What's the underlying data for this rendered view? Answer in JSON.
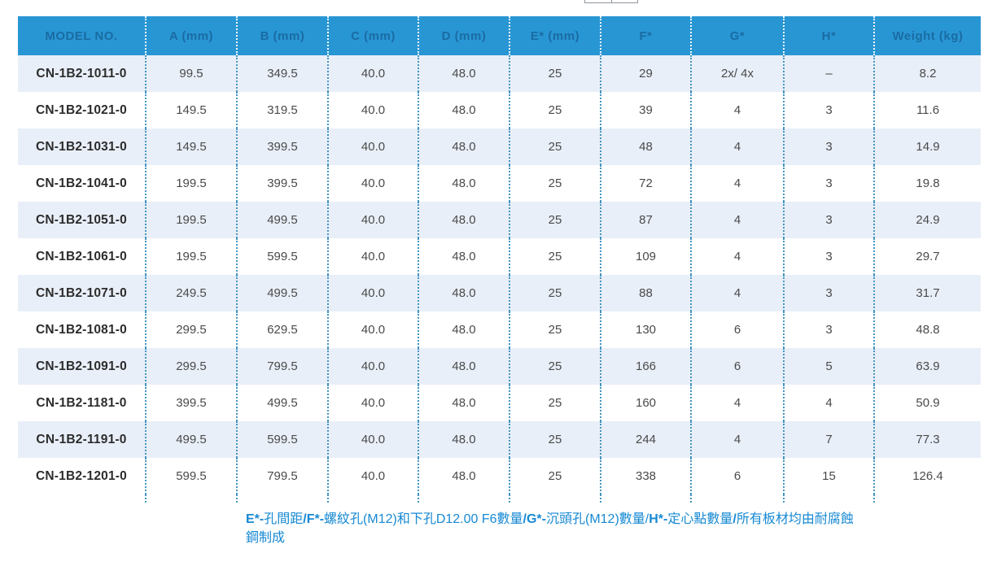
{
  "theme": {
    "header_bg": "#2996d4",
    "header_text": "#1a6ca3",
    "row_alt_bg": "#e9eff8",
    "separator_dot_color": "#4595c0",
    "footnote_text_color": "#1789d3"
  },
  "table": {
    "columns": [
      "MODEL NO.",
      "A (mm)",
      "B (mm)",
      "C (mm)",
      "D (mm)",
      "E* (mm)",
      "F*",
      "G*",
      "H*",
      "Weight (kg)"
    ],
    "rows": [
      [
        "CN-1B2-1011-0",
        "99.5",
        "349.5",
        "40.0",
        "48.0",
        "25",
        "29",
        "2x/ 4x",
        "–",
        "8.2"
      ],
      [
        "CN-1B2-1021-0",
        "149.5",
        "319.5",
        "40.0",
        "48.0",
        "25",
        "39",
        "4",
        "3",
        "11.6"
      ],
      [
        "CN-1B2-1031-0",
        "149.5",
        "399.5",
        "40.0",
        "48.0",
        "25",
        "48",
        "4",
        "3",
        "14.9"
      ],
      [
        "CN-1B2-1041-0",
        "199.5",
        "399.5",
        "40.0",
        "48.0",
        "25",
        "72",
        "4",
        "3",
        "19.8"
      ],
      [
        "CN-1B2-1051-0",
        "199.5",
        "499.5",
        "40.0",
        "48.0",
        "25",
        "87",
        "4",
        "3",
        "24.9"
      ],
      [
        "CN-1B2-1061-0",
        "199.5",
        "599.5",
        "40.0",
        "48.0",
        "25",
        "109",
        "4",
        "3",
        "29.7"
      ],
      [
        "CN-1B2-1071-0",
        "249.5",
        "499.5",
        "40.0",
        "48.0",
        "25",
        "88",
        "4",
        "3",
        "31.7"
      ],
      [
        "CN-1B2-1081-0",
        "299.5",
        "629.5",
        "40.0",
        "48.0",
        "25",
        "130",
        "6",
        "3",
        "48.8"
      ],
      [
        "CN-1B2-1091-0",
        "299.5",
        "799.5",
        "40.0",
        "48.0",
        "25",
        "166",
        "6",
        "5",
        "63.9"
      ],
      [
        "CN-1B2-1181-0",
        "399.5",
        "499.5",
        "40.0",
        "48.0",
        "25",
        "160",
        "4",
        "4",
        "50.9"
      ],
      [
        "CN-1B2-1191-0",
        "499.5",
        "599.5",
        "40.0",
        "48.0",
        "25",
        "244",
        "4",
        "7",
        "77.3"
      ],
      [
        "CN-1B2-1201-0",
        "599.5",
        "799.5",
        "40.0",
        "48.0",
        "25",
        "338",
        "6",
        "15",
        "126.4"
      ]
    ]
  },
  "footnote": {
    "segments": [
      {
        "text": "E*-",
        "bold": true
      },
      {
        "text": "孔間距",
        "bold": false
      },
      {
        "text": "/",
        "bold": true
      },
      {
        "text": "F*-",
        "bold": true
      },
      {
        "text": "螺紋孔(M12)和下孔D12.00 F6數量",
        "bold": false
      },
      {
        "text": "/",
        "bold": true
      },
      {
        "text": "G*-",
        "bold": true
      },
      {
        "text": "沉頭孔(M12)數量",
        "bold": false
      },
      {
        "text": "/",
        "bold": false
      },
      {
        "text": "H*-",
        "bold": true
      },
      {
        "text": "定心點數量",
        "bold": false
      },
      {
        "text": "/",
        "bold": true
      },
      {
        "text": "所有板材均由耐腐蝕鋼制成",
        "bold": false
      }
    ]
  }
}
